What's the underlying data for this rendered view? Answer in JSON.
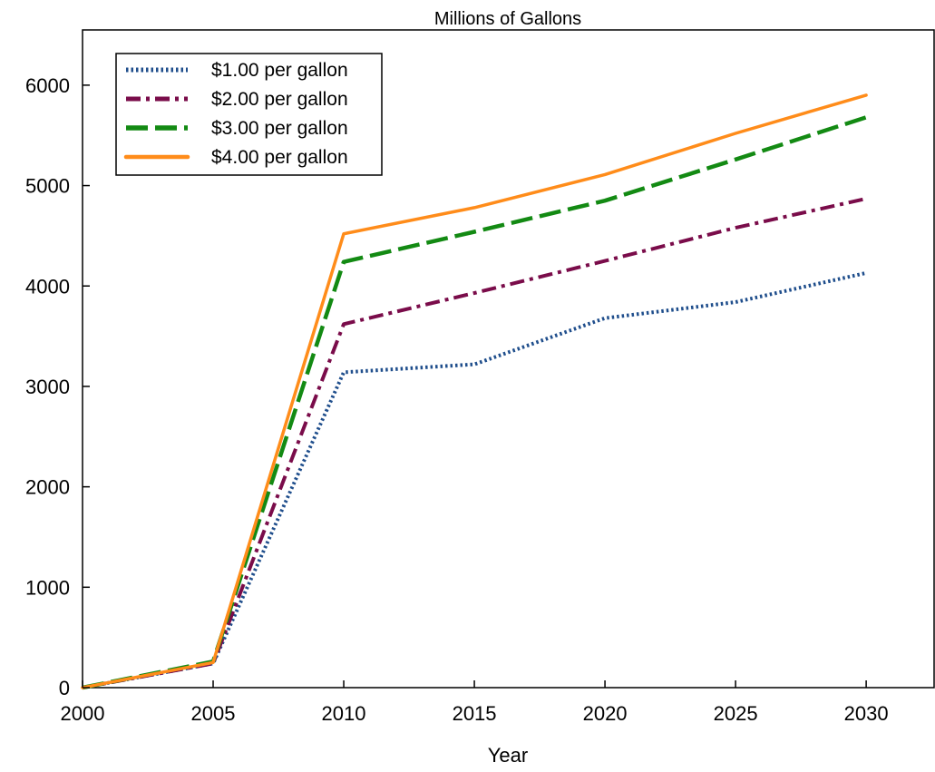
{
  "chart_data": {
    "type": "line",
    "title": "Millions of Gallons",
    "xlabel": "Year",
    "ylabel": "",
    "x": [
      2000,
      2005,
      2010,
      2015,
      2020,
      2025,
      2030
    ],
    "xticks": [
      "2000",
      "2005",
      "2010",
      "2015",
      "2020",
      "2025",
      "2030"
    ],
    "yticks": [
      "0",
      "1000",
      "2000",
      "3000",
      "4000",
      "5000",
      "6000"
    ],
    "xlim": [
      2000,
      2032.6
    ],
    "ylim": [
      0,
      6550
    ],
    "grid": false,
    "legend_position": "top-left",
    "series": [
      {
        "name": "$1.00 per gallon",
        "color": "#1f4e8c",
        "dash": "dotted",
        "values": [
          0,
          240,
          3140,
          3220,
          3680,
          3840,
          4130
        ]
      },
      {
        "name": "$2.00 per gallon",
        "color": "#7a0c4a",
        "dash": "dash-dot",
        "values": [
          0,
          240,
          3620,
          3930,
          4250,
          4580,
          4870
        ]
      },
      {
        "name": "$3.00 per gallon",
        "color": "#138a13",
        "dash": "dashed",
        "values": [
          0,
          260,
          4240,
          4540,
          4850,
          5260,
          5680
        ]
      },
      {
        "name": "$4.00 per gallon",
        "color": "#ff8c1a",
        "dash": "solid",
        "values": [
          0,
          250,
          4520,
          4780,
          5110,
          5520,
          5900
        ]
      }
    ]
  }
}
